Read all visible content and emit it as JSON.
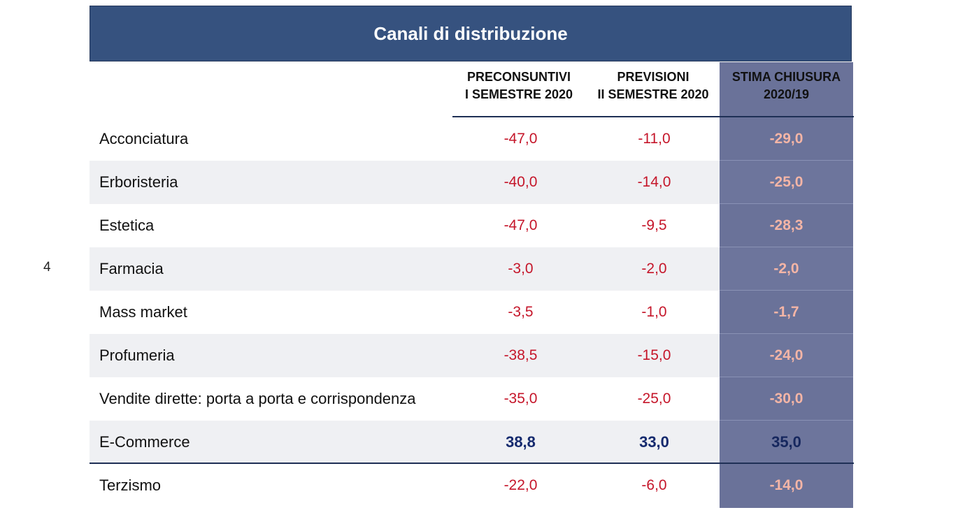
{
  "page_number": "4",
  "title": "Canali di distribuzione",
  "columns": [
    {
      "line1": "PRECONSUNTIVI",
      "line2": "I SEMESTRE 2020"
    },
    {
      "line1": "PREVISIONI",
      "line2": "II SEMESTRE 2020"
    },
    {
      "line1": "STIMA CHIUSURA",
      "line2": "2020/19"
    }
  ],
  "rows": [
    {
      "label": "Acconciatura",
      "v1": "-47,0",
      "v2": "-11,0",
      "v3": "-29,0"
    },
    {
      "label": "Erboristeria",
      "v1": "-40,0",
      "v2": "-14,0",
      "v3": "-25,0"
    },
    {
      "label": "Estetica",
      "v1": "-47,0",
      "v2": "-9,5",
      "v3": "-28,3"
    },
    {
      "label": "Farmacia",
      "v1": "-3,0",
      "v2": "-2,0",
      "v3": "-2,0"
    },
    {
      "label": "Mass market",
      "v1": "-3,5",
      "v2": "-1,0",
      "v3": "-1,7"
    },
    {
      "label": "Profumeria",
      "v1": "-38,5",
      "v2": "-15,0",
      "v3": "-24,0"
    },
    {
      "label": "Vendite dirette: porta a porta e corrispondenza",
      "v1": "-35,0",
      "v2": "-25,0",
      "v3": "-30,0"
    },
    {
      "label": "E-Commerce",
      "v1": "38,8",
      "v2": "33,0",
      "v3": "35,0"
    },
    {
      "label": "Terzismo",
      "v1": "-22,0",
      "v2": "-6,0",
      "v3": "-14,0"
    }
  ],
  "colors": {
    "title_bar": "#36527f",
    "highlight_column": "#6a7299",
    "negative_value": "#c5162a",
    "positive_value": "#152a6e",
    "highlight_negative": "#f4b5a6"
  }
}
